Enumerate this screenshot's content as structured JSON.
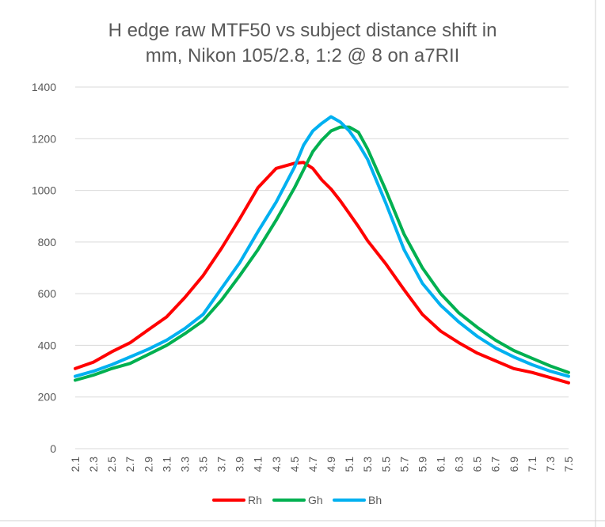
{
  "chart_data": {
    "type": "line",
    "title_lines": [
      "H edge raw MTF50 vs subject distance shift in",
      "mm, Nikon 105/2.8, 1:2 @ 8 on a7RII"
    ],
    "xlabel": "",
    "ylabel": "",
    "xlim": [
      2.1,
      7.5
    ],
    "ylim": [
      0,
      1400
    ],
    "y_ticks": [
      "0",
      "200",
      "400",
      "600",
      "800",
      "1000",
      "1200",
      "1400"
    ],
    "x_tick_labels": [
      "2.1",
      "2.3",
      "2.5",
      "2.7",
      "2.9",
      "3.1",
      "3.3",
      "3.5",
      "3.7",
      "3.9",
      "4.1",
      "4.3",
      "4.5",
      "4.7",
      "4.9",
      "5.1",
      "5.3",
      "5.5",
      "5.7",
      "5.9",
      "6.1",
      "6.3",
      "6.5",
      "6.7",
      "6.9",
      "7.1",
      "7.3",
      "7.5"
    ],
    "grid": "horizontal",
    "legend_position": "bottom",
    "x": [
      2.1,
      2.3,
      2.5,
      2.7,
      2.9,
      3.1,
      3.3,
      3.5,
      3.7,
      3.9,
      4.1,
      4.3,
      4.5,
      4.6,
      4.7,
      4.8,
      4.9,
      5.0,
      5.1,
      5.2,
      5.3,
      5.5,
      5.7,
      5.9,
      6.1,
      6.3,
      6.5,
      6.7,
      6.9,
      7.1,
      7.3,
      7.5
    ],
    "series": [
      {
        "name": "Rh",
        "color": "#ff0000",
        "values": [
          310,
          335,
          375,
          410,
          460,
          510,
          585,
          670,
          775,
          890,
          1010,
          1085,
          1105,
          1108,
          1085,
          1040,
          1005,
          960,
          910,
          860,
          805,
          715,
          615,
          520,
          455,
          410,
          370,
          340,
          310,
          295,
          275,
          255
        ]
      },
      {
        "name": "Gh",
        "color": "#00b050",
        "values": [
          265,
          285,
          310,
          330,
          365,
          400,
          445,
          495,
          575,
          670,
          770,
          885,
          1010,
          1080,
          1150,
          1195,
          1230,
          1245,
          1245,
          1225,
          1160,
          1000,
          830,
          700,
          600,
          525,
          470,
          420,
          380,
          350,
          320,
          295
        ]
      },
      {
        "name": "Bh",
        "color": "#00b0f0",
        "values": [
          280,
          300,
          325,
          355,
          385,
          420,
          465,
          520,
          620,
          720,
          840,
          955,
          1090,
          1175,
          1230,
          1260,
          1285,
          1265,
          1230,
          1180,
          1120,
          950,
          770,
          640,
          555,
          490,
          435,
          390,
          355,
          325,
          300,
          280
        ]
      }
    ]
  }
}
